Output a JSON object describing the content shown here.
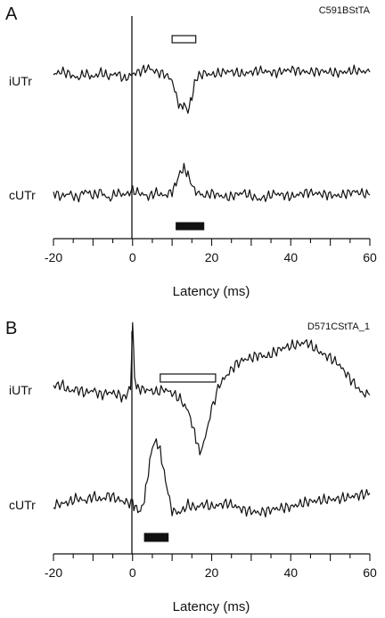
{
  "chart_data": [
    {
      "type": "line",
      "panel_label": "A",
      "recording_id": "C591BStTA",
      "xlabel": "Latency (ms)",
      "xlim": [
        -20,
        60
      ],
      "xticks": [
        -20,
        0,
        20,
        40,
        60
      ],
      "series": [
        {
          "name": "iUTr",
          "x": [
            -20,
            -18,
            -16,
            -14,
            -12,
            -10,
            -8,
            -6,
            -4,
            -2,
            0,
            2,
            4,
            6,
            8,
            10,
            11,
            12,
            13,
            14,
            15,
            16,
            18,
            20,
            24,
            28,
            32,
            36,
            40,
            44,
            48,
            52,
            56,
            60
          ],
          "y": [
            0.1,
            0.5,
            0.2,
            -0.3,
            0.3,
            -0.2,
            0.4,
            -0.1,
            0.3,
            -0.4,
            0.2,
            0.5,
            0.9,
            0.4,
            0.2,
            -0.5,
            -2.2,
            -3.6,
            -3.2,
            -4.0,
            -2.4,
            -0.3,
            0.3,
            0.1,
            0.5,
            0.2,
            0.6,
            0.3,
            0.7,
            0.4,
            0.5,
            0.3,
            0.6,
            0.4
          ]
        },
        {
          "name": "cUTr",
          "x": [
            -20,
            -18,
            -16,
            -14,
            -12,
            -10,
            -8,
            -6,
            -4,
            -2,
            0,
            2,
            4,
            6,
            8,
            10,
            11,
            12,
            13,
            14,
            15,
            16,
            18,
            20,
            24,
            28,
            32,
            34,
            36,
            40,
            44,
            48,
            52,
            56,
            60
          ],
          "y": [
            0.2,
            -0.3,
            0.1,
            -0.5,
            0.4,
            -0.2,
            0.3,
            -0.6,
            0.2,
            -0.1,
            0.4,
            0.1,
            -0.3,
            0.2,
            -0.2,
            0.3,
            1.2,
            2.4,
            2.9,
            2.2,
            1.0,
            0.3,
            -0.2,
            0.1,
            -0.4,
            0.2,
            -0.6,
            -0.3,
            0.1,
            -0.3,
            0.2,
            0.0,
            -0.2,
            0.3,
            -0.1
          ]
        }
      ],
      "bars": [
        {
          "color": "#ffffff",
          "x_start": 10,
          "x_end": 16
        },
        {
          "color": "#111111",
          "x_start": 11,
          "x_end": 18
        }
      ]
    },
    {
      "type": "line",
      "panel_label": "B",
      "recording_id": "D571CStTA_1",
      "xlabel": "Latency (ms)",
      "xlim": [
        -20,
        60
      ],
      "xticks": [
        -20,
        0,
        20,
        40,
        60
      ],
      "series": [
        {
          "name": "iUTr",
          "x": [
            -20,
            -18,
            -16,
            -14,
            -12,
            -10,
            -8,
            -6,
            -4,
            -2,
            -0.5,
            0,
            0.5,
            1,
            2,
            4,
            6,
            8,
            10,
            12,
            14,
            15,
            16,
            17,
            18,
            20,
            22,
            24,
            26,
            28,
            30,
            32,
            34,
            36,
            38,
            40,
            42,
            44,
            46,
            48,
            50,
            52,
            54,
            56,
            58,
            60
          ],
          "y": [
            0.3,
            0.5,
            -0.2,
            0.0,
            -0.4,
            -0.1,
            -0.6,
            -0.3,
            -0.5,
            -0.9,
            0.2,
            6.5,
            1.5,
            0.2,
            0.0,
            -0.1,
            -0.3,
            0.0,
            -0.4,
            -1.0,
            -2.2,
            -3.5,
            -5.0,
            -6.5,
            -5.6,
            -2.0,
            0.5,
            1.5,
            2.5,
            3.0,
            3.2,
            3.5,
            3.3,
            3.8,
            4.2,
            4.4,
            4.6,
            4.8,
            4.2,
            3.6,
            3.2,
            2.6,
            1.6,
            0.6,
            -0.4,
            -0.6
          ]
        },
        {
          "name": "cUTr",
          "x": [
            -20,
            -18,
            -16,
            -14,
            -12,
            -10,
            -8,
            -6,
            -4,
            -2,
            0,
            1,
            2,
            3,
            4,
            5,
            6,
            7,
            8,
            9,
            10,
            12,
            14,
            16,
            18,
            20,
            24,
            28,
            32,
            36,
            40,
            44,
            48,
            52,
            56,
            60
          ],
          "y": [
            0.0,
            0.1,
            0.3,
            0.7,
            0.4,
            0.9,
            0.5,
            1.0,
            0.6,
            0.3,
            0.2,
            -0.4,
            -0.7,
            0.6,
            3.4,
            6.0,
            6.5,
            5.5,
            3.2,
            1.2,
            -0.6,
            -0.8,
            0.0,
            -0.3,
            0.1,
            -0.2,
            0.2,
            -0.5,
            -0.8,
            -0.4,
            -0.2,
            0.3,
            0.5,
            0.6,
            0.9,
            1.2
          ]
        }
      ],
      "bars": [
        {
          "color": "#ffffff",
          "x_start": 7,
          "x_end": 21
        },
        {
          "color": "#111111",
          "x_start": 3,
          "x_end": 9
        }
      ]
    }
  ]
}
